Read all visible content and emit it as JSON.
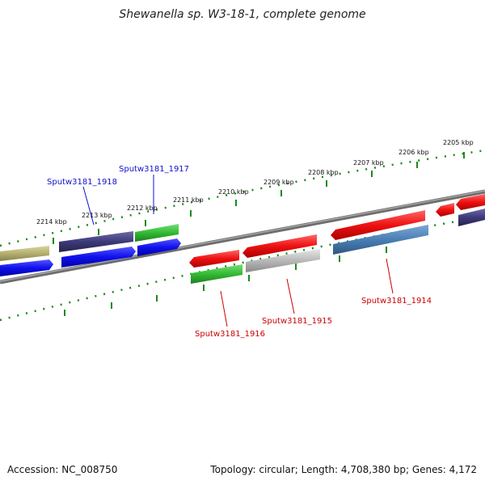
{
  "title": "Shewanella sp. W3-18-1, complete genome",
  "accession": "Accession: NC_008750",
  "summary": "Topology: circular; Length: 4,708,380 bp; Genes: 4,172",
  "ticks": [
    "2205 kbp",
    "2206 kbp",
    "2207 kbp",
    "2208 kbp",
    "2209 kbp",
    "2210 kbp",
    "2211 kbp",
    "2212 kbp",
    "2213 kbp",
    "2214 kbp"
  ],
  "gene_labels": {
    "g1918": "Sputw3181_1918",
    "g1917": "Sputw3181_1917",
    "g1916": "Sputw3181_1916",
    "g1915": "Sputw3181_1915",
    "g1914": "Sputw3181_1914"
  },
  "colors": {
    "backbone": "#808080",
    "tick": "#1a8a1a",
    "forward_label": "#1010cc",
    "reverse_label": "#cc0000",
    "red": "#ee1111",
    "blue": "#1010ee",
    "navy": "#3d3a7a",
    "green": "#33bb33",
    "steelblue": "#4a7fb5",
    "gray": "#b8b8b8",
    "olive": "#b5b070"
  }
}
